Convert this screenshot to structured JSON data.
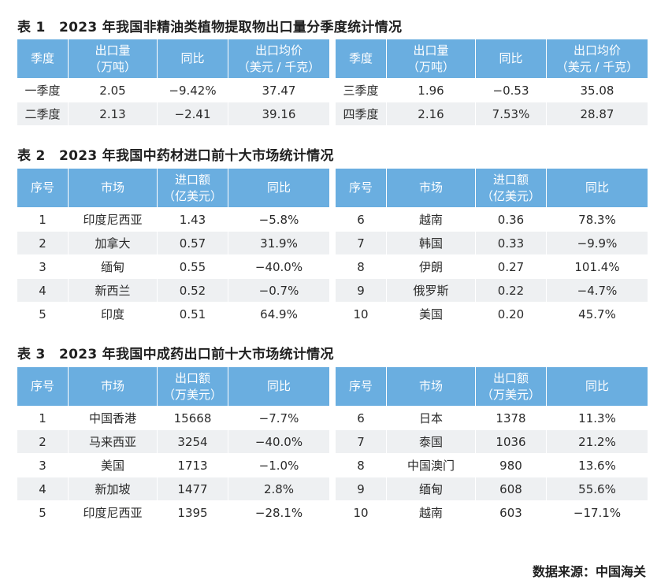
{
  "table1": {
    "title": "表 1　2023 年我国非精油类植物提取物出口量分季度统计情况",
    "headers": {
      "season": "季度",
      "qty": "出口量",
      "qty_unit": "（万吨）",
      "yoy": "同比",
      "price": "出口均价",
      "price_unit": "（美元 / 千克）"
    },
    "left_rows": [
      {
        "season": "一季度",
        "qty": "2.05",
        "yoy": "−9.42%",
        "price": "37.47"
      },
      {
        "season": "二季度",
        "qty": "2.13",
        "yoy": "−2.41",
        "price": "39.16"
      }
    ],
    "right_rows": [
      {
        "season": "三季度",
        "qty": "1.96",
        "yoy": "−0.53",
        "price": "35.08"
      },
      {
        "season": "四季度",
        "qty": "2.16",
        "yoy": "7.53%",
        "price": "28.87"
      }
    ]
  },
  "table2": {
    "title": "表 2　2023 年我国中药材进口前十大市场统计情况",
    "headers": {
      "no": "序号",
      "market": "市场",
      "amount": "进口额",
      "amount_unit": "（亿美元）",
      "yoy": "同比"
    },
    "left_rows": [
      {
        "no": "1",
        "market": "印度尼西亚",
        "amount": "1.43",
        "yoy": "−5.8%"
      },
      {
        "no": "2",
        "market": "加拿大",
        "amount": "0.57",
        "yoy": "31.9%"
      },
      {
        "no": "3",
        "market": "缅甸",
        "amount": "0.55",
        "yoy": "−40.0%"
      },
      {
        "no": "4",
        "market": "新西兰",
        "amount": "0.52",
        "yoy": "−0.7%"
      },
      {
        "no": "5",
        "market": "印度",
        "amount": "0.51",
        "yoy": "64.9%"
      }
    ],
    "right_rows": [
      {
        "no": "6",
        "market": "越南",
        "amount": "0.36",
        "yoy": "78.3%"
      },
      {
        "no": "7",
        "market": "韩国",
        "amount": "0.33",
        "yoy": "−9.9%"
      },
      {
        "no": "8",
        "market": "伊朗",
        "amount": "0.27",
        "yoy": "101.4%"
      },
      {
        "no": "9",
        "market": "俄罗斯",
        "amount": "0.22",
        "yoy": "−4.7%"
      },
      {
        "no": "10",
        "market": "美国",
        "amount": "0.20",
        "yoy": "45.7%"
      }
    ]
  },
  "table3": {
    "title": "表 3　2023 年我国中成药出口前十大市场统计情况",
    "headers": {
      "no": "序号",
      "market": "市场",
      "amount": "出口额",
      "amount_unit": "（万美元）",
      "yoy": "同比"
    },
    "left_rows": [
      {
        "no": "1",
        "market": "中国香港",
        "amount": "15668",
        "yoy": "−7.7%"
      },
      {
        "no": "2",
        "market": "马来西亚",
        "amount": "3254",
        "yoy": "−40.0%"
      },
      {
        "no": "3",
        "market": "美国",
        "amount": "1713",
        "yoy": "−1.0%"
      },
      {
        "no": "4",
        "market": "新加坡",
        "amount": "1477",
        "yoy": "2.8%"
      },
      {
        "no": "5",
        "market": "印度尼西亚",
        "amount": "1395",
        "yoy": "−28.1%"
      }
    ],
    "right_rows": [
      {
        "no": "6",
        "market": "日本",
        "amount": "1378",
        "yoy": "11.3%"
      },
      {
        "no": "7",
        "market": "泰国",
        "amount": "1036",
        "yoy": "21.2%"
      },
      {
        "no": "8",
        "market": "中国澳门",
        "amount": "980",
        "yoy": "13.6%"
      },
      {
        "no": "9",
        "market": "缅甸",
        "amount": "608",
        "yoy": "55.6%"
      },
      {
        "no": "10",
        "market": "越南",
        "amount": "603",
        "yoy": "−17.1%"
      }
    ]
  },
  "source": "数据来源：中国海关"
}
